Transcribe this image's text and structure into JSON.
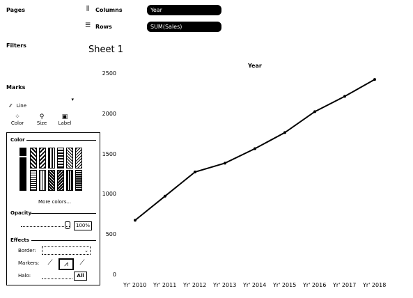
{
  "shelves": {
    "pages_label": "Pages",
    "columns_label": "Columns",
    "columns_pill": "Year",
    "rows_label": "Rows",
    "rows_pill": "SUM(Sales)",
    "filters_label": "Filters"
  },
  "marks": {
    "title": "Marks",
    "type": "Line",
    "color_label": "Color",
    "size_label": "Size",
    "label_label": "Label"
  },
  "color_panel": {
    "color_title": "Color",
    "more_colors": "More colors...",
    "opacity_title": "Opacity",
    "opacity_value": "100%",
    "effects_title": "Effects",
    "border_label": "Border:",
    "markers_label": "Markers:",
    "halo_label": "Halo:",
    "all_button": "All"
  },
  "sheet": {
    "title": "Sheet 1"
  },
  "chart_data": {
    "type": "line",
    "title": "Year",
    "x": [
      "Yr' 2010",
      "Yr' 2011",
      "Yr' 2012",
      "Yr' 2013",
      "Yr' 2014",
      "Yr' 2015",
      "Yr' 2016",
      "Yr' 2017",
      "Yr' 2018"
    ],
    "series": [
      {
        "values": [
          680,
          980,
          1280,
          1390,
          1570,
          1770,
          2030,
          2220,
          2430
        ]
      }
    ],
    "y_ticks": [
      "0",
      "500",
      "1000",
      "1500",
      "2000",
      "2500"
    ],
    "ylim": [
      0,
      2500
    ],
    "grid": false,
    "color": "#000000"
  }
}
